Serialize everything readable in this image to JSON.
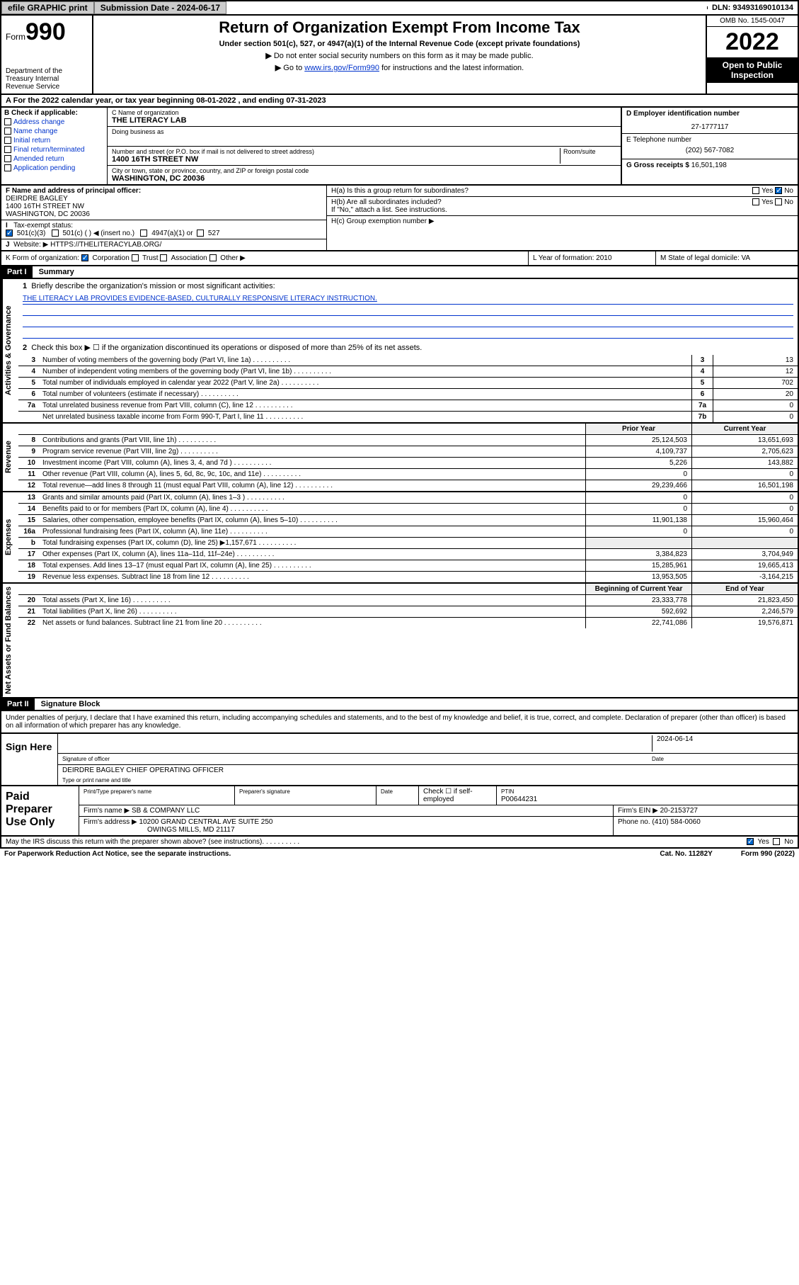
{
  "topbar": {
    "efile": "efile GRAPHIC print",
    "submission_label": "Submission Date - 2024-06-17",
    "dln": "DLN: 93493169010134"
  },
  "header": {
    "form_prefix": "Form",
    "form_num": "990",
    "dept": "Department of the Treasury\nInternal Revenue Service",
    "title": "Return of Organization Exempt From Income Tax",
    "sub": "Under section 501(c), 527, or 4947(a)(1) of the Internal Revenue Code (except private foundations)",
    "note1": "Do not enter social security numbers on this form as it may be made public.",
    "note2_pre": "Go to ",
    "note2_link": "www.irs.gov/Form990",
    "note2_post": " for instructions and the latest information.",
    "omb": "OMB No. 1545-0047",
    "year": "2022",
    "inspect": "Open to Public Inspection"
  },
  "rowA": "For the 2022 calendar year, or tax year beginning 08-01-2022   , and ending 07-31-2023",
  "boxB": {
    "label": "B Check if applicable:",
    "items": [
      "Address change",
      "Name change",
      "Initial return",
      "Final return/terminated",
      "Amended return",
      "Application pending"
    ]
  },
  "boxC": {
    "name_label": "C Name of organization",
    "name": "THE LITERACY LAB",
    "dba_label": "Doing business as",
    "addr_label": "Number and street (or P.O. box if mail is not delivered to street address)",
    "room_label": "Room/suite",
    "addr": "1400 16TH STREET NW",
    "city_label": "City or town, state or province, country, and ZIP or foreign postal code",
    "city": "WASHINGTON, DC  20036"
  },
  "boxD": {
    "label": "D Employer identification number",
    "val": "27-1777117"
  },
  "boxE": {
    "label": "E Telephone number",
    "val": "(202) 567-7082"
  },
  "boxG": {
    "label": "G Gross receipts $",
    "val": "16,501,198"
  },
  "boxF": {
    "label": "F  Name and address of principal officer:",
    "line1": "DEIRDRE BAGLEY",
    "line2": "1400 16TH STREET NW",
    "line3": "WASHINGTON, DC  20036"
  },
  "boxH": {
    "ha": "H(a)  Is this a group return for subordinates?",
    "hb": "H(b)  Are all subordinates included?",
    "hb_note": "If \"No,\" attach a list. See instructions.",
    "hc": "H(c)  Group exemption number ▶",
    "yes": "Yes",
    "no": "No"
  },
  "boxI": {
    "label": "Tax-exempt status:",
    "opts": [
      "501(c)(3)",
      "501(c) (  ) ◀ (insert no.)",
      "4947(a)(1) or",
      "527"
    ]
  },
  "boxJ": {
    "label": "Website: ▶",
    "val": "HTTPS://THELITERACYLAB.ORG/"
  },
  "boxK": {
    "label": "K Form of organization:",
    "opts": [
      "Corporation",
      "Trust",
      "Association",
      "Other ▶"
    ]
  },
  "boxL": {
    "label": "L Year of formation:",
    "val": "2010"
  },
  "boxM": {
    "label": "M State of legal domicile:",
    "val": "VA"
  },
  "part1": {
    "hdr": "Part I",
    "title": "Summary",
    "line1_label": "Briefly describe the organization's mission or most significant activities:",
    "mission": "THE LITERACY LAB PROVIDES EVIDENCE-BASED, CULTURALLY RESPONSIVE LITERACY INSTRUCTION.",
    "line2": "Check this box ▶ ☐  if the organization discontinued its operations or disposed of more than 25% of its net assets.",
    "sections": [
      {
        "side": "Activities & Governance",
        "rows": [
          {
            "n": "3",
            "d": "Number of voting members of the governing body (Part VI, line 1a)",
            "box": "3",
            "v": "13"
          },
          {
            "n": "4",
            "d": "Number of independent voting members of the governing body (Part VI, line 1b)",
            "box": "4",
            "v": "12"
          },
          {
            "n": "5",
            "d": "Total number of individuals employed in calendar year 2022 (Part V, line 2a)",
            "box": "5",
            "v": "702"
          },
          {
            "n": "6",
            "d": "Total number of volunteers (estimate if necessary)",
            "box": "6",
            "v": "20"
          },
          {
            "n": "7a",
            "d": "Total unrelated business revenue from Part VIII, column (C), line 12",
            "box": "7a",
            "v": "0"
          },
          {
            "n": "",
            "d": "Net unrelated business taxable income from Form 990-T, Part I, line 11",
            "box": "7b",
            "v": "0"
          }
        ]
      },
      {
        "side": "Revenue",
        "hdr": [
          "Prior Year",
          "Current Year"
        ],
        "rows": [
          {
            "n": "8",
            "d": "Contributions and grants (Part VIII, line 1h)",
            "p": "25,124,503",
            "c": "13,651,693"
          },
          {
            "n": "9",
            "d": "Program service revenue (Part VIII, line 2g)",
            "p": "4,109,737",
            "c": "2,705,623"
          },
          {
            "n": "10",
            "d": "Investment income (Part VIII, column (A), lines 3, 4, and 7d )",
            "p": "5,226",
            "c": "143,882"
          },
          {
            "n": "11",
            "d": "Other revenue (Part VIII, column (A), lines 5, 6d, 8c, 9c, 10c, and 11e)",
            "p": "0",
            "c": "0"
          },
          {
            "n": "12",
            "d": "Total revenue—add lines 8 through 11 (must equal Part VIII, column (A), line 12)",
            "p": "29,239,466",
            "c": "16,501,198"
          }
        ]
      },
      {
        "side": "Expenses",
        "rows": [
          {
            "n": "13",
            "d": "Grants and similar amounts paid (Part IX, column (A), lines 1–3 )",
            "p": "0",
            "c": "0"
          },
          {
            "n": "14",
            "d": "Benefits paid to or for members (Part IX, column (A), line 4)",
            "p": "0",
            "c": "0"
          },
          {
            "n": "15",
            "d": "Salaries, other compensation, employee benefits (Part IX, column (A), lines 5–10)",
            "p": "11,901,138",
            "c": "15,960,464"
          },
          {
            "n": "16a",
            "d": "Professional fundraising fees (Part IX, column (A), line 11e)",
            "p": "0",
            "c": "0"
          },
          {
            "n": "b",
            "d": "Total fundraising expenses (Part IX, column (D), line 25) ▶1,157,671",
            "p": "",
            "c": ""
          },
          {
            "n": "17",
            "d": "Other expenses (Part IX, column (A), lines 11a–11d, 11f–24e)",
            "p": "3,384,823",
            "c": "3,704,949"
          },
          {
            "n": "18",
            "d": "Total expenses. Add lines 13–17 (must equal Part IX, column (A), line 25)",
            "p": "15,285,961",
            "c": "19,665,413"
          },
          {
            "n": "19",
            "d": "Revenue less expenses. Subtract line 18 from line 12",
            "p": "13,953,505",
            "c": "-3,164,215"
          }
        ]
      },
      {
        "side": "Net Assets or Fund Balances",
        "hdr": [
          "Beginning of Current Year",
          "End of Year"
        ],
        "rows": [
          {
            "n": "20",
            "d": "Total assets (Part X, line 16)",
            "p": "23,333,778",
            "c": "21,823,450"
          },
          {
            "n": "21",
            "d": "Total liabilities (Part X, line 26)",
            "p": "592,692",
            "c": "2,246,579"
          },
          {
            "n": "22",
            "d": "Net assets or fund balances. Subtract line 21 from line 20",
            "p": "22,741,086",
            "c": "19,576,871"
          }
        ]
      }
    ]
  },
  "part2": {
    "hdr": "Part II",
    "title": "Signature Block",
    "perjury": "Under penalties of perjury, I declare that I have examined this return, including accompanying schedules and statements, and to the best of my knowledge and belief, it is true, correct, and complete. Declaration of preparer (other than officer) is based on all information of which preparer has any knowledge.",
    "sign_here": "Sign Here",
    "sig_officer": "Signature of officer",
    "sig_date_label": "Date",
    "sig_date": "2024-06-14",
    "sig_name": "DEIRDRE BAGLEY  CHIEF OPERATING OFFICER",
    "sig_name_label": "Type or print name and title",
    "paid": "Paid Preparer Use Only",
    "p_name_label": "Print/Type preparer's name",
    "p_sig_label": "Preparer's signature",
    "p_date_label": "Date",
    "p_check": "Check ☐ if self-employed",
    "p_ptin_label": "PTIN",
    "p_ptin": "P00644231",
    "firm_name_label": "Firm's name    ▶",
    "firm_name": "SB & COMPANY LLC",
    "firm_ein_label": "Firm's EIN ▶",
    "firm_ein": "20-2153727",
    "firm_addr_label": "Firm's address ▶",
    "firm_addr1": "10200 GRAND CENTRAL AVE SUITE 250",
    "firm_addr2": "OWINGS MILLS, MD  21117",
    "phone_label": "Phone no.",
    "phone": "(410) 584-0060",
    "discuss": "May the IRS discuss this return with the preparer shown above? (see instructions)",
    "yes": "Yes",
    "no": "No"
  },
  "footer": {
    "pra": "For Paperwork Reduction Act Notice, see the separate instructions.",
    "cat": "Cat. No. 11282Y",
    "form": "Form 990 (2022)"
  }
}
